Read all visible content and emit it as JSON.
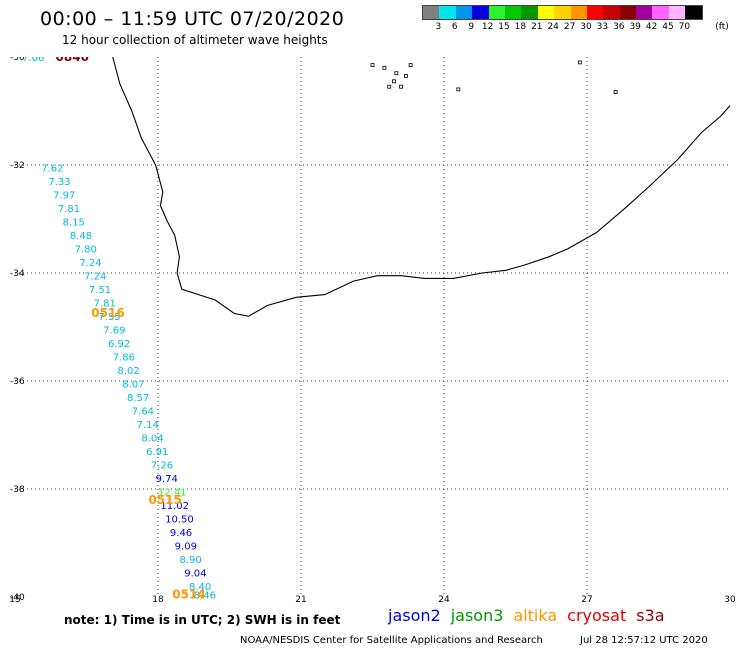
{
  "header": {
    "title": "00:00 – 11:59 UTC 07/20/2020",
    "subtitle": "12 hour collection of altimeter wave heights"
  },
  "legend": {
    "unit": "(ft)",
    "bins": [
      {
        "color": "#808080",
        "label": "3"
      },
      {
        "color": "#00e5ee",
        "label": "6"
      },
      {
        "color": "#0096f0",
        "label": "9"
      },
      {
        "color": "#0000e0",
        "label": "12"
      },
      {
        "color": "#2ef22e",
        "label": "15"
      },
      {
        "color": "#00c800",
        "label": "18"
      },
      {
        "color": "#009600",
        "label": "21"
      },
      {
        "color": "#ffff00",
        "label": "24"
      },
      {
        "color": "#ffd200",
        "label": "27"
      },
      {
        "color": "#ff9600",
        "label": "30"
      },
      {
        "color": "#ff0000",
        "label": "33"
      },
      {
        "color": "#c80000",
        "label": "36"
      },
      {
        "color": "#8c0000",
        "label": "39"
      },
      {
        "color": "#a000a0",
        "label": "42"
      },
      {
        "color": "#ff64ff",
        "label": "45"
      },
      {
        "color": "#ffb4ff",
        "label": "70"
      },
      {
        "color": "#000000",
        "label": ""
      }
    ]
  },
  "map_axes": {
    "lon_range": [
      15,
      30
    ],
    "lat_range": [
      -40,
      -30
    ],
    "lon_ticks": [
      "15",
      "18",
      "21",
      "24",
      "27",
      "30"
    ],
    "lat_ticks": [
      "-30",
      "-32",
      "-34",
      "-36",
      "-38",
      "-40"
    ],
    "grid": "dotted"
  },
  "track_times": [
    {
      "label": "0840",
      "lon": 15.85,
      "lat": -30.0,
      "color": "#8c0000"
    },
    {
      "label": "0516",
      "lon": 16.6,
      "lat": -34.74,
      "color": "#ff9600"
    },
    {
      "label": "0515",
      "lon": 17.8,
      "lat": -38.2,
      "color": "#ff9600"
    },
    {
      "label": "0514",
      "lon": 18.3,
      "lat": -39.95,
      "color": "#ff9600"
    }
  ],
  "swh_readings": [
    {
      "value": "7.06",
      "lon": 15.15,
      "lat": -30.0,
      "color": "#00bbdd"
    },
    {
      "value": "7.62",
      "lon": 15.55,
      "lat": -32.05,
      "color": "#00bbdd"
    },
    {
      "value": "7.33",
      "lon": 15.7,
      "lat": -32.3,
      "color": "#00bbdd"
    },
    {
      "value": "7.97",
      "lon": 15.8,
      "lat": -32.55,
      "color": "#00bbdd"
    },
    {
      "value": "7.81",
      "lon": 15.9,
      "lat": -32.8,
      "color": "#00bbdd"
    },
    {
      "value": "8.15",
      "lon": 16.0,
      "lat": -33.05,
      "color": "#00bbdd"
    },
    {
      "value": "8.48",
      "lon": 16.15,
      "lat": -33.3,
      "color": "#00bbdd"
    },
    {
      "value": "7.80",
      "lon": 16.25,
      "lat": -33.55,
      "color": "#00bbdd"
    },
    {
      "value": "7.24",
      "lon": 16.35,
      "lat": -33.8,
      "color": "#00bbdd"
    },
    {
      "value": "7.24",
      "lon": 16.45,
      "lat": -34.05,
      "color": "#00bbdd"
    },
    {
      "value": "7.51",
      "lon": 16.55,
      "lat": -34.3,
      "color": "#00bbdd"
    },
    {
      "value": "7.81",
      "lon": 16.65,
      "lat": -34.55,
      "color": "#00bbdd"
    },
    {
      "value": "7.55",
      "lon": 16.75,
      "lat": -34.8,
      "color": "#00bbdd"
    },
    {
      "value": "7.69",
      "lon": 16.85,
      "lat": -35.05,
      "color": "#00bbdd"
    },
    {
      "value": "6.92",
      "lon": 16.95,
      "lat": -35.3,
      "color": "#00bbdd"
    },
    {
      "value": "7.86",
      "lon": 17.05,
      "lat": -35.55,
      "color": "#00bbdd"
    },
    {
      "value": "8.02",
      "lon": 17.15,
      "lat": -35.8,
      "color": "#00bbdd"
    },
    {
      "value": "8.07",
      "lon": 17.25,
      "lat": -36.05,
      "color": "#00bbdd"
    },
    {
      "value": "8.57",
      "lon": 17.35,
      "lat": -36.3,
      "color": "#00bbdd"
    },
    {
      "value": "7.64",
      "lon": 17.45,
      "lat": -36.55,
      "color": "#00bbdd"
    },
    {
      "value": "7.14",
      "lon": 17.55,
      "lat": -36.8,
      "color": "#00bbdd"
    },
    {
      "value": "8.04",
      "lon": 17.65,
      "lat": -37.05,
      "color": "#00bbdd"
    },
    {
      "value": "6.91",
      "lon": 17.75,
      "lat": -37.3,
      "color": "#00bbdd"
    },
    {
      "value": "7.26",
      "lon": 17.85,
      "lat": -37.55,
      "color": "#00bbdd"
    },
    {
      "value": "9.74",
      "lon": 17.95,
      "lat": -37.8,
      "color": "#0000e0"
    },
    {
      "value": "12.41",
      "lon": 18.0,
      "lat": -38.05,
      "color": "#2ef22e"
    },
    {
      "value": "11.02",
      "lon": 18.05,
      "lat": -38.3,
      "color": "#0000e0"
    },
    {
      "value": "10.50",
      "lon": 18.15,
      "lat": -38.55,
      "color": "#0000e0"
    },
    {
      "value": "9.46",
      "lon": 18.25,
      "lat": -38.8,
      "color": "#0000e0"
    },
    {
      "value": "9.09",
      "lon": 18.35,
      "lat": -39.05,
      "color": "#0000e0"
    },
    {
      "value": "8.90",
      "lon": 18.45,
      "lat": -39.3,
      "color": "#00bbdd"
    },
    {
      "value": "9.04",
      "lon": 18.55,
      "lat": -39.55,
      "color": "#0000e0"
    },
    {
      "value": "8.40",
      "lon": 18.65,
      "lat": -39.8,
      "color": "#00bbdd"
    },
    {
      "value": "8.46",
      "lon": 18.75,
      "lat": -39.95,
      "color": "#00bbdd"
    }
  ],
  "coastline": [
    [
      17.05,
      -30.0
    ],
    [
      17.2,
      -30.5
    ],
    [
      17.45,
      -31.0
    ],
    [
      17.65,
      -31.5
    ],
    [
      17.95,
      -32.0
    ],
    [
      18.1,
      -32.5
    ],
    [
      18.05,
      -32.75
    ],
    [
      18.2,
      -33.05
    ],
    [
      18.35,
      -33.3
    ],
    [
      18.45,
      -33.7
    ],
    [
      18.4,
      -34.0
    ],
    [
      18.5,
      -34.3
    ],
    [
      18.85,
      -34.4
    ],
    [
      19.2,
      -34.5
    ],
    [
      19.6,
      -34.75
    ],
    [
      19.9,
      -34.8
    ],
    [
      20.3,
      -34.6
    ],
    [
      20.9,
      -34.45
    ],
    [
      21.5,
      -34.4
    ],
    [
      22.1,
      -34.15
    ],
    [
      22.6,
      -34.05
    ],
    [
      23.1,
      -34.05
    ],
    [
      23.6,
      -34.1
    ],
    [
      24.2,
      -34.1
    ],
    [
      24.8,
      -34.0
    ],
    [
      25.3,
      -33.95
    ],
    [
      25.7,
      -33.85
    ],
    [
      26.2,
      -33.7
    ],
    [
      26.6,
      -33.55
    ],
    [
      27.2,
      -33.25
    ],
    [
      27.8,
      -32.8
    ],
    [
      28.3,
      -32.4
    ],
    [
      28.9,
      -31.9
    ],
    [
      29.4,
      -31.4
    ],
    [
      29.8,
      -31.1
    ],
    [
      30.0,
      -30.9
    ]
  ],
  "islands": [
    [
      22.5,
      -30.15
    ],
    [
      22.75,
      -30.2
    ],
    [
      23.0,
      -30.3
    ],
    [
      22.95,
      -30.45
    ],
    [
      23.1,
      -30.55
    ],
    [
      23.2,
      -30.35
    ],
    [
      22.85,
      -30.55
    ],
    [
      23.3,
      -30.15
    ],
    [
      24.3,
      -30.6
    ],
    [
      26.85,
      -30.1
    ],
    [
      27.6,
      -30.65
    ]
  ],
  "footer": {
    "note": "note:  1) Time is in UTC;  2) SWH is in feet",
    "satellites": [
      {
        "name": "jason2",
        "color": "#0000e0"
      },
      {
        "name": "jason3",
        "color": "#009600"
      },
      {
        "name": "altika",
        "color": "#ff9600"
      },
      {
        "name": "cryosat",
        "color": "#e00000"
      },
      {
        "name": "s3a",
        "color": "#8c0000"
      }
    ],
    "credit": "NOAA/NESDIS Center for Satellite Applications and Research",
    "timestamp": "Jul 28 12:57:12 UTC 2020"
  }
}
